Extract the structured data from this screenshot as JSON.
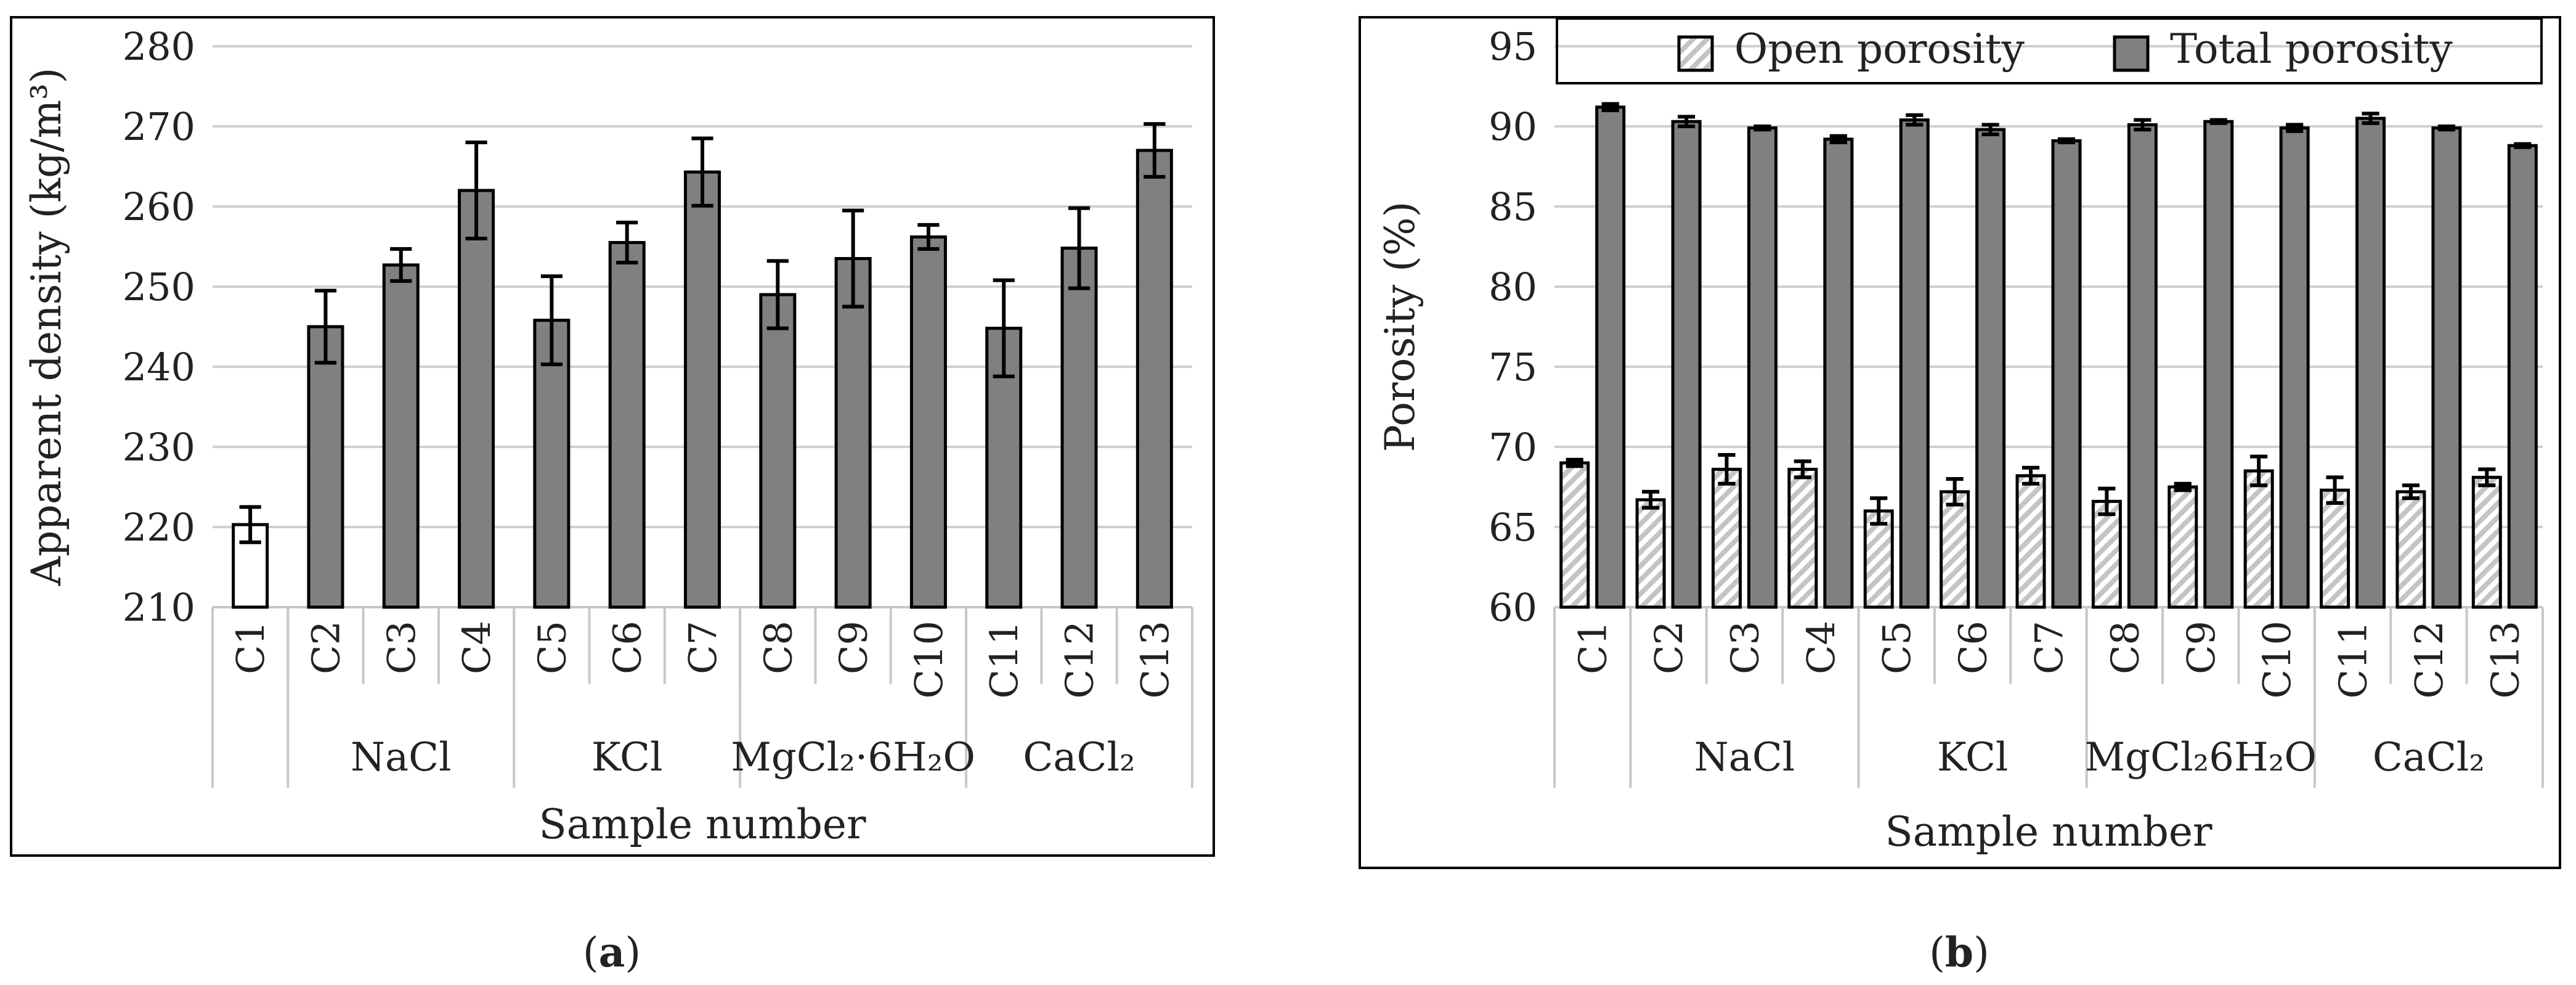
{
  "chart_data": [
    {
      "type": "bar",
      "title": "",
      "xlabel": "Sample number",
      "ylabel": "Apparent density (kg/m³)",
      "ylim": [
        210,
        280
      ],
      "yticks": [
        "210",
        "220",
        "230",
        "240",
        "250",
        "260",
        "270",
        "280"
      ],
      "categories": [
        "C1",
        "C2",
        "C3",
        "C4",
        "C5",
        "C6",
        "C7",
        "C8",
        "C9",
        "C10",
        "C11",
        "C12",
        "C13"
      ],
      "groups": [
        {
          "label": "",
          "span": [
            0,
            0
          ]
        },
        {
          "label": "NaCl",
          "span": [
            1,
            3
          ]
        },
        {
          "label": "KCl",
          "span": [
            4,
            6
          ]
        },
        {
          "label": "MgCl₂·6H₂O",
          "span": [
            7,
            9
          ]
        },
        {
          "label": "CaCl₂",
          "span": [
            10,
            12
          ]
        }
      ],
      "series": [
        {
          "name": "Apparent density",
          "values": [
            220.3,
            245.0,
            252.7,
            262.0,
            245.8,
            255.5,
            264.3,
            249.0,
            253.5,
            256.2,
            244.8,
            254.8,
            267.0
          ],
          "errors": [
            2.2,
            4.5,
            2.0,
            6.0,
            5.5,
            2.5,
            4.2,
            4.2,
            6.0,
            1.5,
            6.0,
            5.0,
            3.3
          ],
          "colors": [
            "#ffffff",
            "#808080",
            "#808080",
            "#808080",
            "#808080",
            "#808080",
            "#808080",
            "#808080",
            "#808080",
            "#808080",
            "#808080",
            "#808080",
            "#808080"
          ]
        }
      ],
      "grid": true,
      "panel_label": "(a)"
    },
    {
      "type": "bar",
      "title": "",
      "xlabel": "Sample number",
      "ylabel": "Porosity (%)",
      "ylim": [
        60,
        95
      ],
      "yticks": [
        "60",
        "65",
        "70",
        "75",
        "80",
        "85",
        "90",
        "95"
      ],
      "categories": [
        "C1",
        "C2",
        "C3",
        "C4",
        "C5",
        "C6",
        "C7",
        "C8",
        "C9",
        "C10",
        "C11",
        "C12",
        "C13"
      ],
      "groups": [
        {
          "label": "",
          "span": [
            0,
            0
          ]
        },
        {
          "label": "NaCl",
          "span": [
            1,
            3
          ]
        },
        {
          "label": "KCl",
          "span": [
            4,
            6
          ]
        },
        {
          "label": "MgCl₂6H₂O",
          "span": [
            7,
            9
          ]
        },
        {
          "label": "CaCl₂",
          "span": [
            10,
            12
          ]
        }
      ],
      "series": [
        {
          "name": "Open porosity",
          "values": [
            69.0,
            66.7,
            68.6,
            68.6,
            66.0,
            67.2,
            68.2,
            66.6,
            67.5,
            68.5,
            67.3,
            67.2,
            68.1
          ],
          "errors": [
            0.2,
            0.5,
            0.9,
            0.5,
            0.8,
            0.8,
            0.5,
            0.8,
            0.2,
            0.9,
            0.8,
            0.4,
            0.5
          ],
          "color": "#d9d9d9",
          "pattern": "hatch"
        },
        {
          "name": "Total porosity",
          "values": [
            91.2,
            90.3,
            89.9,
            89.2,
            90.4,
            89.8,
            89.1,
            90.1,
            90.3,
            89.9,
            90.5,
            89.9,
            88.8
          ],
          "errors": [
            0.2,
            0.3,
            0.1,
            0.2,
            0.3,
            0.3,
            0.1,
            0.3,
            0.1,
            0.2,
            0.3,
            0.1,
            0.1
          ],
          "color": "#808080"
        }
      ],
      "legend": "top",
      "grid": true,
      "panel_label": "(b)"
    }
  ]
}
